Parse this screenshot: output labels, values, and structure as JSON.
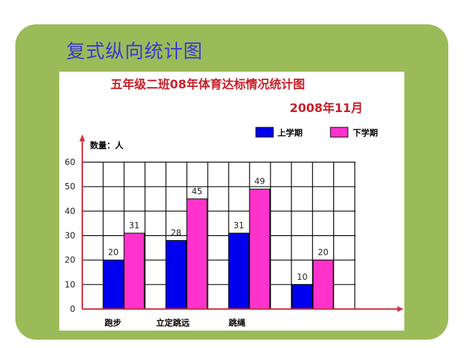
{
  "slide": {
    "title": "复式纵向统计图"
  },
  "colors": {
    "panel": "#9bbb59",
    "series1": "#0000ee",
    "series2": "#ff33cc",
    "axis": "#d03040",
    "title": "#c8202a"
  },
  "chart_data": {
    "type": "bar",
    "title": "五年级二班08年体育达标情况统计图",
    "subtitle": "2008年11月",
    "ylabel": "数量：人",
    "xlabel": "",
    "categories": [
      "跑步",
      "立定跳远",
      "跳绳",
      ""
    ],
    "series": [
      {
        "name": "上学期",
        "values": [
          20,
          28,
          31,
          10
        ]
      },
      {
        "name": "下学期",
        "values": [
          31,
          45,
          49,
          20
        ]
      }
    ],
    "data_labels": [
      [
        "20",
        "28",
        "31",
        "10"
      ],
      [
        "31",
        "45",
        "49",
        "20"
      ]
    ],
    "yticks": [
      "0",
      "10",
      "20",
      "30",
      "40",
      "50",
      "60"
    ],
    "ylim": [
      0,
      60
    ],
    "grid": true,
    "legend": "top-right"
  }
}
